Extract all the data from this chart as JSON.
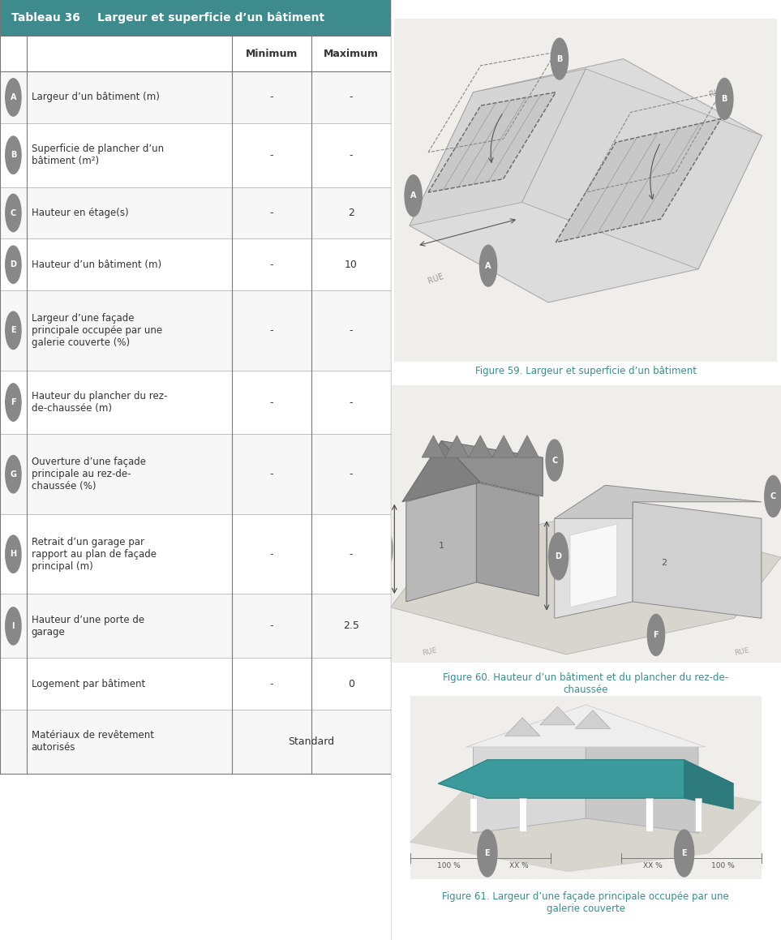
{
  "title": "Tableau 36",
  "title_desc": "Largeur et superficie d’un bâtiment",
  "header_bg": "#3d8b8d",
  "header_text_color": "#ffffff",
  "col_header_min": "Minimum",
  "col_header_max": "Maximum",
  "rows": [
    {
      "label_icon": "A",
      "label_text": "Largeur d’un bâtiment (m)",
      "min": "-",
      "max": "-",
      "nlines": 1
    },
    {
      "label_icon": "B",
      "label_text": "Superficie de plancher d’un\nbâtiment (m²)",
      "min": "-",
      "max": "-",
      "nlines": 2
    },
    {
      "label_icon": "C",
      "label_text": "Hauteur en étage(s)",
      "min": "-",
      "max": "2",
      "nlines": 1
    },
    {
      "label_icon": "D",
      "label_text": "Hauteur d’un bâtiment (m)",
      "min": "-",
      "max": "10",
      "nlines": 1
    },
    {
      "label_icon": "E",
      "label_text": "Largeur d’une façade\nprincipale occupée par une\ngalerie couverte (%)",
      "min": "-",
      "max": "-",
      "nlines": 3
    },
    {
      "label_icon": "F",
      "label_text": "Hauteur du plancher du rez-\nde-chaussée (m)",
      "min": "-",
      "max": "-",
      "nlines": 2
    },
    {
      "label_icon": "G",
      "label_text": "Ouverture d’une façade\nprincipale au rez-de-\nchaussée (%)",
      "min": "-",
      "max": "-",
      "nlines": 3
    },
    {
      "label_icon": "H",
      "label_text": "Retrait d’un garage par\nrapport au plan de façade\nprincipal (m)",
      "min": "-",
      "max": "-",
      "nlines": 3
    },
    {
      "label_icon": "I",
      "label_text": "Hauteur d’une porte de\ngarage",
      "min": "-",
      "max": "2.5",
      "nlines": 2
    }
  ],
  "extra_rows": [
    {
      "label_text": "Logement par bâtiment",
      "min": "-",
      "max": "0",
      "span": false
    },
    {
      "label_text": "Matériaux de revêtement\nautorisés",
      "value": "Standard",
      "span": true
    }
  ],
  "fig59_caption": "Figure 59. Largeur et superficie d’un bâtiment",
  "fig60_caption": "Figure 60. Hauteur d’un bâtiment et du plancher du rez-de-\nchaussée",
  "fig61_caption": "Figure 61. Largeur d’une façade principale occupée par une\ngalerie couverte",
  "caption_color": "#3d8b8d",
  "header_bg2": "#3d8b8d",
  "border_color": "#777777",
  "thin_border": "#aaaaaa",
  "icon_bg": "#888888",
  "icon_text_color": "#ffffff",
  "cell_text_color": "#333333",
  "bg_color": "#ffffff",
  "alt_row_color": "#f7f7f7"
}
